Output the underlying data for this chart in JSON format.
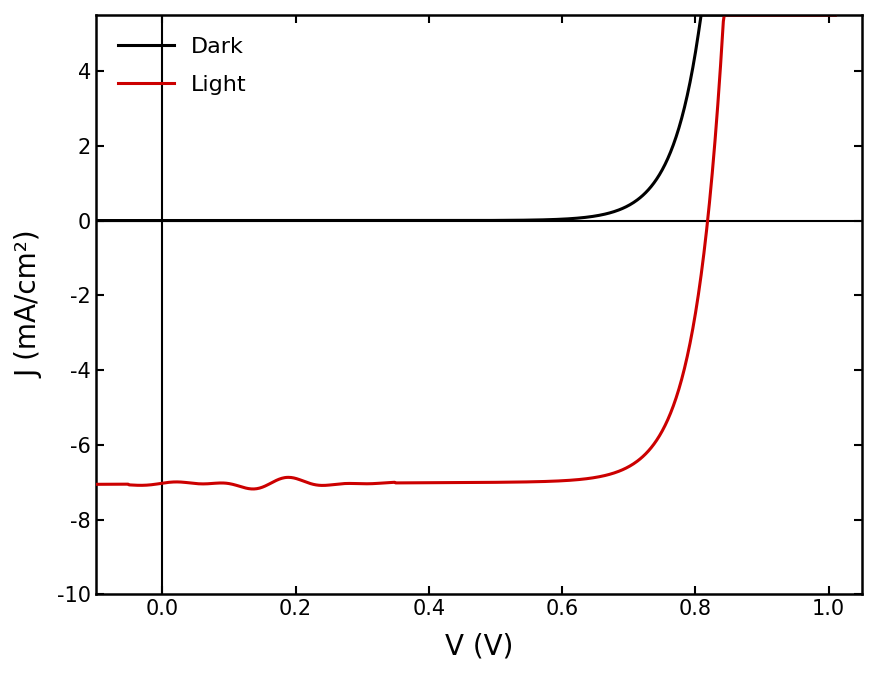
{
  "xlabel": "V (V)",
  "ylabel": "J (mA/cm²)",
  "xlim": [
    -0.1,
    1.05
  ],
  "ylim": [
    -10,
    5.5
  ],
  "xticks": [
    0.0,
    0.2,
    0.4,
    0.6,
    0.8,
    1.0
  ],
  "yticks": [
    -10,
    -8,
    -6,
    -4,
    -2,
    0,
    2,
    4
  ],
  "dark_color": "#000000",
  "light_color": "#cc0000",
  "legend_labels": [
    "Dark",
    "Light"
  ],
  "background_color": "#ffffff",
  "linewidth": 2.2,
  "legend_fontsize": 16,
  "axis_label_fontsize": 20,
  "tick_fontsize": 15
}
